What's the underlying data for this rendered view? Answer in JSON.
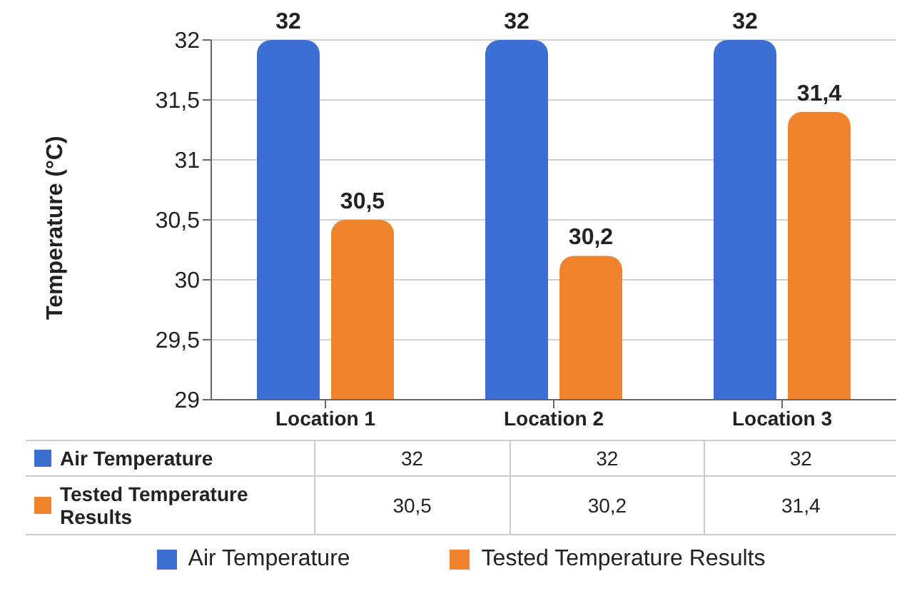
{
  "chart_data": {
    "type": "bar",
    "ylabel": "Temperature (°C)",
    "categories": [
      "Location 1",
      "Location 2",
      "Location 3"
    ],
    "series": [
      {
        "name": "Air Temperature",
        "color": "#3b6fd1",
        "values": [
          32,
          32,
          32
        ],
        "value_labels": [
          "32",
          "32",
          "32"
        ]
      },
      {
        "name": "Tested Temperature Results",
        "color": "#f0842c",
        "values": [
          30.5,
          30.2,
          31.4
        ],
        "value_labels": [
          "30,5",
          "30,2",
          "31,4"
        ]
      }
    ],
    "ylim": [
      29,
      32
    ],
    "yticks": [
      {
        "value": 29,
        "label": "29"
      },
      {
        "value": 29.5,
        "label": "29,5"
      },
      {
        "value": 30,
        "label": "30"
      },
      {
        "value": 30.5,
        "label": "30,5"
      },
      {
        "value": 31,
        "label": "31"
      },
      {
        "value": 31.5,
        "label": "31,5"
      },
      {
        "value": 32,
        "label": "32"
      }
    ],
    "grid": "y",
    "legend": "bottom"
  }
}
